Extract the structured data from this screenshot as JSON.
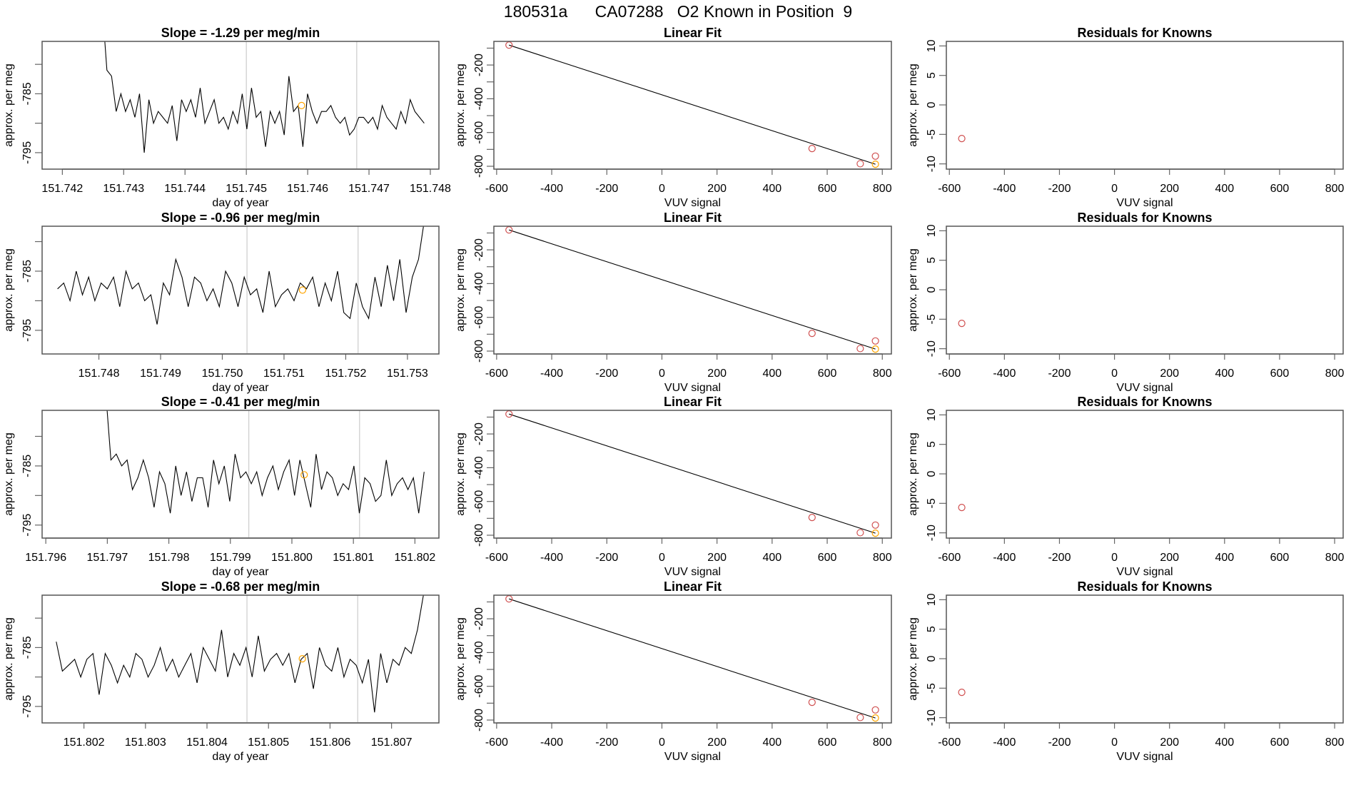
{
  "main_title": "180531a      CA07288   O2 Known in Position  9",
  "colors": {
    "line": "#000000",
    "known": "#d05050",
    "current": "#ffa500",
    "vline": "#cccccc",
    "box": "#555555"
  },
  "chart_data": [
    {
      "type": "line",
      "row": 1,
      "title": "Slope =  -1.29  per meg/min",
      "xlabel": "day of year",
      "ylabel": "approx. per meg",
      "xlim": [
        151.74167,
        151.74814
      ],
      "ylim": [
        -797.8,
        -776.1
      ],
      "xticks": [
        "151.742",
        "151.743",
        "151.744",
        "151.745",
        "151.746",
        "151.747",
        "151.748"
      ],
      "yticks": [
        {
          "v": -780,
          "label": ""
        },
        {
          "v": -785,
          "label": "-785"
        },
        {
          "v": -790,
          "label": ""
        },
        {
          "v": -795,
          "label": "-795"
        }
      ],
      "x_start": 151.74265,
      "x_end": 151.7479,
      "values": [
        -770,
        -781,
        -782,
        -788,
        -785,
        -788,
        -786,
        -789,
        -785,
        -795,
        -786,
        -790,
        -788,
        -789,
        -790,
        -787,
        -793,
        -786,
        -788,
        -786,
        -789,
        -784,
        -790,
        -788,
        -786,
        -790,
        -789,
        -791,
        -788,
        -790,
        -785,
        -791,
        -784,
        -789,
        -788,
        -794,
        -788,
        -790,
        -788,
        -792,
        -782,
        -788,
        -787,
        -794,
        -785,
        -788,
        -790,
        -788,
        -788,
        -787,
        -789,
        -790,
        -789,
        -792,
        -791,
        -789,
        -789,
        -790,
        -789,
        -791,
        -787,
        -789,
        -790,
        -791,
        -788,
        -790,
        -786,
        -788,
        -789,
        -790
      ],
      "vlines": [
        151.745,
        151.7468
      ],
      "marker": {
        "x": 151.7459,
        "y": -787.0
      }
    },
    {
      "type": "line",
      "row": 2,
      "title": "Slope =  -0.96  per meg/min",
      "xlabel": "day of year",
      "ylabel": "approx. per meg",
      "xlim": [
        151.74708,
        151.75351
      ],
      "ylim": [
        -799.0,
        -777.4
      ],
      "xticks": [
        "151.748",
        "151.749",
        "151.750",
        "151.751",
        "151.752",
        "151.753"
      ],
      "yticks": [
        {
          "v": -780,
          "label": ""
        },
        {
          "v": -785,
          "label": "-785"
        },
        {
          "v": -790,
          "label": ""
        },
        {
          "v": -795,
          "label": "-795"
        }
      ],
      "x_start": 151.74733,
      "x_end": 151.75328,
      "values": [
        -788,
        -787,
        -790,
        -785,
        -789,
        -786,
        -790,
        -787,
        -788,
        -786,
        -791,
        -785,
        -788,
        -787,
        -790,
        -789,
        -794,
        -787,
        -789,
        -783,
        -786,
        -791,
        -786,
        -787,
        -790,
        -788,
        -791,
        -785,
        -787,
        -791,
        -786,
        -789,
        -788,
        -792,
        -785,
        -791,
        -789,
        -788,
        -790,
        -787,
        -788,
        -786,
        -791,
        -787,
        -790,
        -785,
        -792,
        -793,
        -787,
        -791,
        -793,
        -786,
        -791,
        -784,
        -790,
        -783,
        -792,
        -786,
        -783,
        -776
      ],
      "vlines": [
        151.7504,
        151.7522
      ],
      "marker": {
        "x": 151.7513,
        "y": -788.2
      }
    },
    {
      "type": "line",
      "row": 3,
      "title": "Slope =  -0.41  per meg/min",
      "xlabel": "day of year",
      "ylabel": "approx. per meg",
      "xlim": [
        151.79594,
        151.80239
      ],
      "ylim": [
        -797.2,
        -775.6
      ],
      "xticks": [
        "151.796",
        "151.797",
        "151.798",
        "151.799",
        "151.800",
        "151.801",
        "151.802"
      ],
      "yticks": [
        {
          "v": -780,
          "label": ""
        },
        {
          "v": -785,
          "label": "-785"
        },
        {
          "v": -790,
          "label": ""
        },
        {
          "v": -795,
          "label": "-795"
        }
      ],
      "x_start": 151.79697,
      "x_end": 151.80215,
      "values": [
        -772,
        -784,
        -783,
        -785,
        -784,
        -789,
        -787,
        -784,
        -787,
        -792,
        -786,
        -788,
        -793,
        -785,
        -790,
        -786,
        -791,
        -787,
        -787,
        -792,
        -784,
        -788,
        -785,
        -791,
        -783,
        -787,
        -786,
        -788,
        -786,
        -790,
        -787,
        -785,
        -789,
        -786,
        -784,
        -790,
        -784,
        -788,
        -792,
        -783,
        -789,
        -786,
        -787,
        -790,
        -788,
        -789,
        -785,
        -793,
        -787,
        -788,
        -791,
        -790,
        -784,
        -790,
        -788,
        -787,
        -789,
        -787,
        -793,
        -786
      ],
      "vlines": [
        151.7993,
        151.8011
      ],
      "marker": {
        "x": 151.8002,
        "y": -786.5
      }
    },
    {
      "type": "line",
      "row": 4,
      "title": "Slope =  -0.68  per meg/min",
      "xlabel": "day of year",
      "ylabel": "approx. per meg",
      "xlim": [
        151.80132,
        151.80777
      ],
      "ylim": [
        -797.8,
        -776.1
      ],
      "xticks": [
        "151.802",
        "151.803",
        "151.804",
        "151.805",
        "151.806",
        "151.807"
      ],
      "yticks": [
        {
          "v": -780,
          "label": ""
        },
        {
          "v": -785,
          "label": "-785"
        },
        {
          "v": -790,
          "label": ""
        },
        {
          "v": -795,
          "label": "-795"
        }
      ],
      "x_start": 151.80155,
      "x_end": 151.80752,
      "values": [
        -784,
        -789,
        -788,
        -787,
        -790,
        -787,
        -786,
        -793,
        -786,
        -788,
        -791,
        -788,
        -790,
        -786,
        -787,
        -790,
        -788,
        -785,
        -789,
        -787,
        -790,
        -788,
        -786,
        -791,
        -785,
        -787,
        -789,
        -782,
        -790,
        -786,
        -788,
        -785,
        -790,
        -783,
        -789,
        -787,
        -786,
        -788,
        -786,
        -791,
        -787,
        -786,
        -792,
        -785,
        -788,
        -789,
        -785,
        -790,
        -787,
        -788,
        -791,
        -787,
        -796,
        -786,
        -791,
        -787,
        -788,
        -785,
        -786,
        -782,
        -776
      ],
      "vlines": [
        151.80465,
        151.80645
      ],
      "marker": {
        "x": 151.80555,
        "y": -786.9
      }
    },
    {
      "type": "scatter",
      "kind": "fit",
      "title": "Linear Fit",
      "xlabel": "VUV signal",
      "ylabel": "approx. per meg",
      "xlim": [
        -610,
        833
      ],
      "ylim": [
        -817,
        -60
      ],
      "xticks": [
        "-600",
        "-400",
        "-200",
        "0",
        "200",
        "400",
        "600",
        "800"
      ],
      "yticks": [
        {
          "v": -100,
          "label": ""
        },
        {
          "v": -200,
          "label": "-200"
        },
        {
          "v": -300,
          "label": ""
        },
        {
          "v": -400,
          "label": "-400"
        },
        {
          "v": -500,
          "label": ""
        },
        {
          "v": -600,
          "label": "-600"
        },
        {
          "v": -700,
          "label": ""
        },
        {
          "v": -800,
          "label": "-800"
        }
      ],
      "known": [
        [
          -555,
          -82
        ],
        [
          545,
          -695
        ],
        [
          720,
          -785
        ],
        [
          775,
          -740
        ]
      ],
      "current": [
        [
          775,
          -788
        ]
      ],
      "fit_line": [
        [
          -555,
          -82
        ],
        [
          775,
          -788
        ]
      ]
    },
    {
      "type": "scatter",
      "kind": "resid",
      "title": "Residuals for Knowns",
      "xlabel": "VUV signal",
      "ylabel": "approx. per meg",
      "xlim": [
        -611,
        831
      ],
      "ylim": [
        -10.89,
        10.77
      ],
      "xticks": [
        "-600",
        "-400",
        "-200",
        "0",
        "200",
        "400",
        "600",
        "800"
      ],
      "yticks": [
        {
          "v": 10,
          "label": "10"
        },
        {
          "v": 5,
          "label": "5"
        },
        {
          "v": 0,
          "label": "0"
        },
        {
          "v": -5,
          "label": "-5"
        },
        {
          "v": -10,
          "label": "-10"
        }
      ],
      "known": [
        [
          -555,
          -5.7
        ]
      ]
    }
  ]
}
